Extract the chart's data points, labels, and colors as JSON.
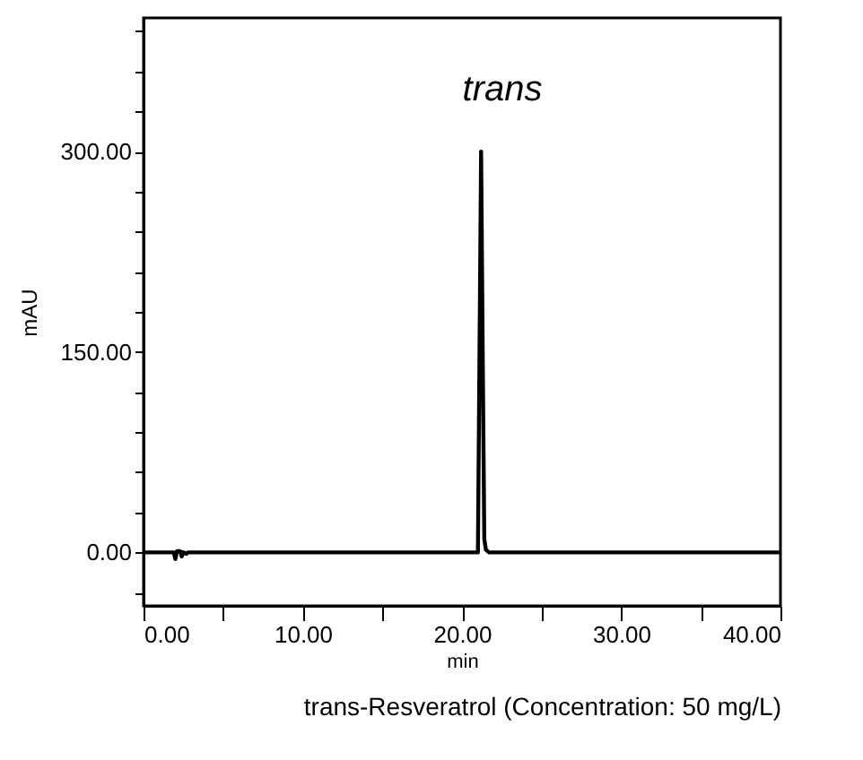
{
  "chart_data": {
    "type": "line",
    "xlabel": "min",
    "ylabel": "mAU",
    "annotations": [
      "trans",
      "trans-Resveratrol   (Concentration: 50 mg/L)"
    ],
    "x": [
      0,
      1.9,
      2.0,
      2.1,
      2.3,
      2.4,
      2.5,
      2.7,
      2.8,
      21.0,
      21.1,
      21.2,
      21.3,
      21.4,
      21.5,
      21.7,
      40
    ],
    "series": [
      {
        "color": "#000000",
        "values": [
          0,
          0,
          -5,
          1,
          1,
          -3,
          0,
          -1,
          0,
          0,
          150,
          300,
          150,
          10,
          2,
          0,
          0
        ]
      }
    ],
    "xlim": [
      0,
      40
    ],
    "xticks": [
      {
        "value": 0,
        "label": "0.00"
      },
      {
        "value": 5,
        "label": null
      },
      {
        "value": 10,
        "label": "10.00"
      },
      {
        "value": 15,
        "label": null
      },
      {
        "value": 20,
        "label": "20.00"
      },
      {
        "value": 25,
        "label": null
      },
      {
        "value": 30,
        "label": "30.00"
      },
      {
        "value": 35,
        "label": null
      },
      {
        "value": 40,
        "label": "40.00"
      }
    ],
    "ylim": [
      -40,
      400
    ],
    "yticks": [
      {
        "value": -30,
        "label": null
      },
      {
        "value": 0,
        "label": "0.00"
      },
      {
        "value": 30,
        "label": null
      },
      {
        "value": 60,
        "label": null
      },
      {
        "value": 90,
        "label": null
      },
      {
        "value": 120,
        "label": null
      },
      {
        "value": 150,
        "label": "150.00"
      },
      {
        "value": 180,
        "label": null
      },
      {
        "value": 210,
        "label": null
      },
      {
        "value": 240,
        "label": null
      },
      {
        "value": 270,
        "label": null
      },
      {
        "value": 300,
        "label": "300.00"
      },
      {
        "value": 330,
        "label": null
      },
      {
        "value": 360,
        "label": null
      },
      {
        "value": 390,
        "label": null
      }
    ],
    "grid": false,
    "marker": "none",
    "line_style": "solid"
  }
}
